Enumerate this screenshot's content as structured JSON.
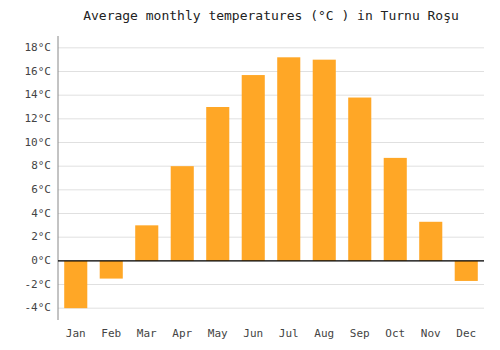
{
  "chart_data": {
    "type": "bar",
    "title": "Average monthly temperatures (°C ) in Turnu Roşu",
    "categories": [
      "Jan",
      "Feb",
      "Mar",
      "Apr",
      "May",
      "Jun",
      "Jul",
      "Aug",
      "Sep",
      "Oct",
      "Nov",
      "Dec"
    ],
    "values": [
      -4.0,
      -1.5,
      3.0,
      8.0,
      13.0,
      15.7,
      17.2,
      17.0,
      13.8,
      8.7,
      3.3,
      -1.7
    ],
    "color": "#FFA726",
    "ylim": [
      -5,
      19
    ],
    "yticks": [
      {
        "value": -4,
        "label": "-4°C"
      },
      {
        "value": -2,
        "label": "-2°C"
      },
      {
        "value": 0,
        "label": "0°C"
      },
      {
        "value": 2,
        "label": "2°C"
      },
      {
        "value": 4,
        "label": "4°C"
      },
      {
        "value": 6,
        "label": "6°C"
      },
      {
        "value": 8,
        "label": "8°C"
      },
      {
        "value": 10,
        "label": "10°C"
      },
      {
        "value": 12,
        "label": "12°C"
      },
      {
        "value": 14,
        "label": "14°C"
      },
      {
        "value": 16,
        "label": "16°C"
      },
      {
        "value": 18,
        "label": "18°C"
      }
    ],
    "grid": true
  }
}
